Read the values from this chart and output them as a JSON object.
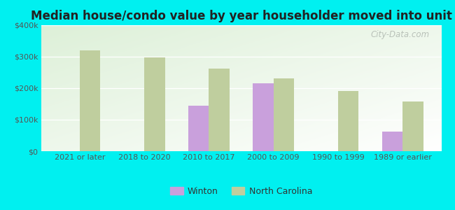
{
  "title": "Median house/condo value by year householder moved into unit",
  "categories": [
    "2021 or later",
    "2018 to 2020",
    "2010 to 2017",
    "2000 to 2009",
    "1990 to 1999",
    "1989 or earlier"
  ],
  "winton": [
    null,
    null,
    145000,
    215000,
    null,
    62000
  ],
  "north_carolina": [
    320000,
    297000,
    263000,
    232000,
    192000,
    158000
  ],
  "winton_color": "#c9a0dc",
  "nc_color": "#bfce9e",
  "outer_background": "#00f0f0",
  "plot_bg_bottom_left": "#c8e6c0",
  "plot_bg_top_right": "#f5fff5",
  "ylim": [
    0,
    400000
  ],
  "yticks": [
    0,
    100000,
    200000,
    300000,
    400000
  ],
  "ytick_labels": [
    "$0",
    "$100k",
    "$200k",
    "$300k",
    "$400k"
  ],
  "legend_winton": "Winton",
  "legend_nc": "North Carolina",
  "watermark": "City-Data.com",
  "title_fontsize": 12,
  "tick_fontsize": 8,
  "legend_fontsize": 9
}
